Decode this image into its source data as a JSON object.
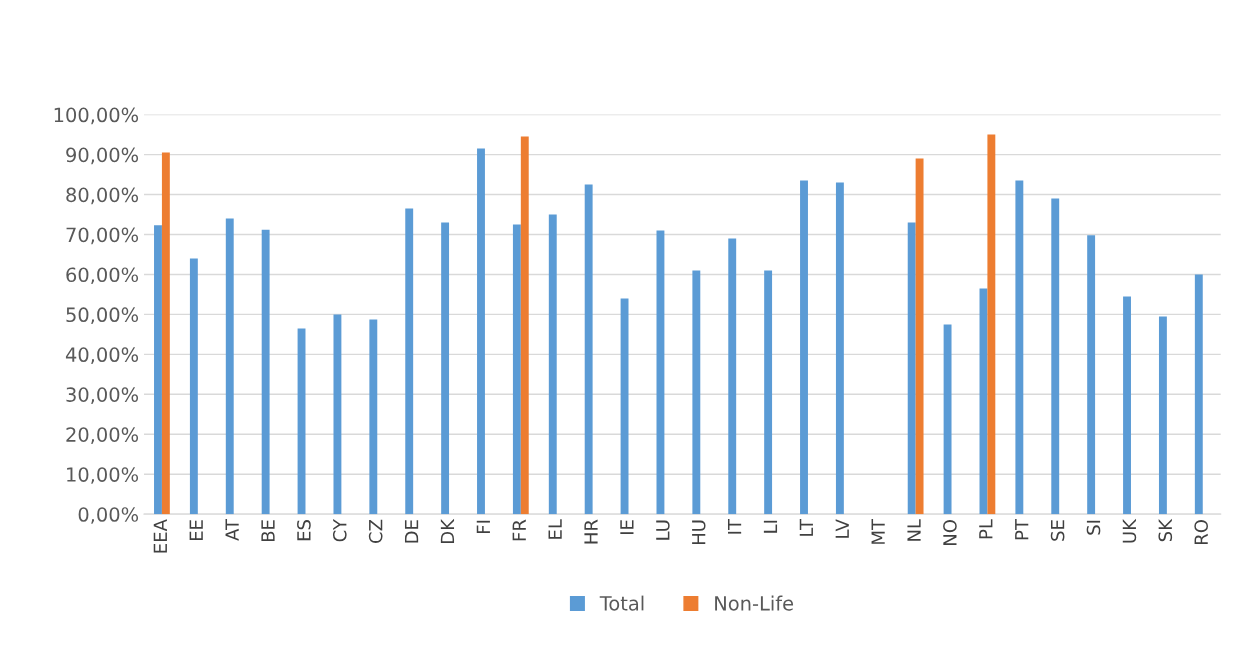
{
  "chart_data": {
    "type": "bar",
    "categories": [
      "EEA",
      "EE",
      "AT",
      "BE",
      "ES",
      "CY",
      "CZ",
      "DE",
      "DK",
      "FI",
      "FR",
      "EL",
      "HR",
      "IE",
      "LU",
      "HU",
      "IT",
      "LI",
      "LT",
      "LV",
      "MT",
      "NL",
      "NO",
      "PL",
      "PT",
      "SE",
      "SI",
      "UK",
      "SK",
      "RO"
    ],
    "series": [
      {
        "name": "Total",
        "color": "#5b9bd5",
        "values": [
          72.3,
          64,
          74,
          71.2,
          46.5,
          50,
          48.7,
          76.5,
          73,
          91.5,
          72.5,
          75,
          82.5,
          54,
          71,
          61,
          69,
          61,
          83.5,
          83,
          null,
          73,
          47.5,
          56.5,
          83.5,
          79,
          69.8,
          54.5,
          49.5,
          60
        ]
      },
      {
        "name": "Non-Life",
        "color": "#ed7d31",
        "values": [
          90.5,
          null,
          null,
          null,
          null,
          null,
          null,
          null,
          null,
          null,
          94.5,
          null,
          null,
          null,
          null,
          null,
          null,
          null,
          null,
          null,
          null,
          89,
          null,
          95,
          null,
          null,
          null,
          null,
          null,
          null
        ]
      }
    ],
    "ylim": [
      0,
      100
    ],
    "yticks": [
      {
        "value": 0,
        "label": "0,00%"
      },
      {
        "value": 10,
        "label": "10,00%"
      },
      {
        "value": 20,
        "label": "20,00%"
      },
      {
        "value": 30,
        "label": "30,00%"
      },
      {
        "value": 40,
        "label": "40,00%"
      },
      {
        "value": 50,
        "label": "50,00%"
      },
      {
        "value": 60,
        "label": "60,00%"
      },
      {
        "value": 70,
        "label": "70,00%"
      },
      {
        "value": 80,
        "label": "80,00%"
      },
      {
        "value": 90,
        "label": "90,00%"
      },
      {
        "value": 100,
        "label": "100,00%"
      }
    ],
    "grid": "y",
    "legend": "bottom"
  }
}
